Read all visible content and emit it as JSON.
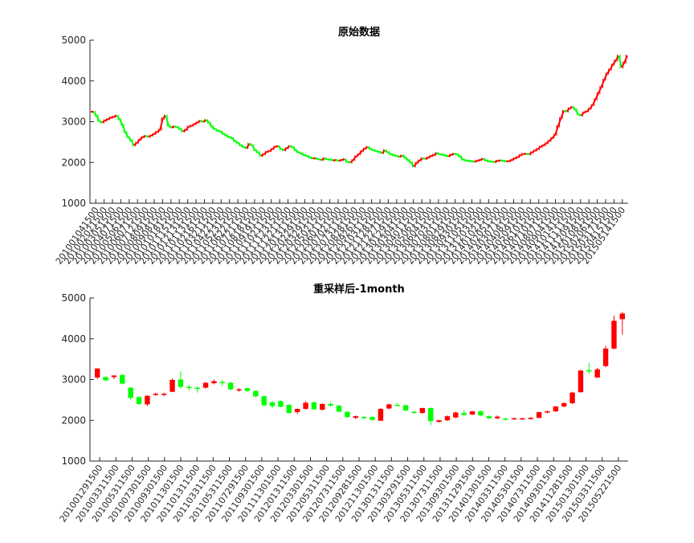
{
  "colors": {
    "up": "#ff0000",
    "down": "#00ff00",
    "axis": "#262626"
  },
  "chart_data": [
    {
      "type": "candlestick",
      "title": "原始数据",
      "xlabel": "",
      "ylabel": "",
      "ylim": [
        1000,
        5000
      ],
      "yticks": [
        1000,
        2000,
        3000,
        4000,
        5000
      ],
      "grid": false,
      "legend": "none",
      "x_tick_labels": [
        "201001041500",
        "201002021500",
        "201003051500",
        "201004071500",
        "201005061500",
        "201006071500",
        "201007121500",
        "201008091500",
        "201009081500",
        "201010181500",
        "201011151500",
        "201012131500",
        "201101131500",
        "201102161500",
        "201103211500",
        "201104221500",
        "201105231500",
        "201106221500",
        "201107211500",
        "201108181500",
        "201109191500",
        "201110211500",
        "201111231500",
        "201112211500",
        "201201311500",
        "201202291500",
        "201203291500",
        "201205021500",
        "201206011500",
        "201207021500",
        "201207311500",
        "201208281500",
        "201209261500",
        "201210311500",
        "201211281500",
        "201212271500",
        "201301291500",
        "201303041500",
        "201304011500",
        "201305061500",
        "201306041500",
        "201307031500",
        "201308011500",
        "201308291500",
        "201309301500",
        "201311051500",
        "201312031500",
        "201401021500",
        "201402051500",
        "201403071500",
        "201404081500",
        "201405091500",
        "201406101500",
        "201407101500",
        "201408071500",
        "201409041500",
        "201410141500",
        "201411111500",
        "201412091500",
        "201501081500",
        "201502061500",
        "201503171500",
        "201504151500",
        "201505141500"
      ],
      "series_close_sampled": [
        3243,
        3150,
        3010,
        2980,
        3030,
        3060,
        3100,
        3120,
        3150,
        3060,
        2920,
        2740,
        2620,
        2540,
        2420,
        2480,
        2560,
        2620,
        2650,
        2630,
        2660,
        2700,
        2750,
        2800,
        3080,
        3150,
        2900,
        2860,
        2880,
        2870,
        2820,
        2760,
        2800,
        2880,
        2900,
        2940,
        2980,
        3020,
        3000,
        3040,
        2980,
        2880,
        2820,
        2780,
        2760,
        2700,
        2660,
        2620,
        2600,
        2520,
        2480,
        2420,
        2380,
        2350,
        2460,
        2420,
        2300,
        2250,
        2160,
        2200,
        2260,
        2280,
        2330,
        2390,
        2400,
        2330,
        2300,
        2350,
        2400,
        2380,
        2300,
        2250,
        2220,
        2180,
        2160,
        2120,
        2100,
        2100,
        2080,
        2060,
        2100,
        2080,
        2070,
        2050,
        2060,
        2040,
        2060,
        2080,
        2010,
        2000,
        2060,
        2150,
        2200,
        2280,
        2340,
        2380,
        2330,
        2300,
        2280,
        2260,
        2230,
        2300,
        2250,
        2200,
        2180,
        2160,
        2140,
        2170,
        2120,
        2060,
        2000,
        1900,
        1990,
        2050,
        2100,
        2090,
        2120,
        2160,
        2180,
        2230,
        2200,
        2190,
        2170,
        2150,
        2190,
        2210,
        2200,
        2150,
        2070,
        2050,
        2040,
        2030,
        2020,
        2040,
        2060,
        2090,
        2050,
        2030,
        2020,
        2010,
        2040,
        2050,
        2040,
        2030,
        2030,
        2060,
        2100,
        2130,
        2180,
        2210,
        2210,
        2200,
        2250,
        2290,
        2330,
        2390,
        2420,
        2470,
        2530,
        2600,
        2680,
        2890,
        3090,
        3270,
        3250,
        3330,
        3360,
        3300,
        3180,
        3150,
        3230,
        3250,
        3320,
        3410,
        3550,
        3700,
        3850,
        4030,
        4180,
        4280,
        4400,
        4500,
        4620,
        4330,
        4450,
        4620
      ]
    },
    {
      "type": "candlestick",
      "title": "重采样后-1month",
      "xlabel": "",
      "ylabel": "",
      "ylim": [
        1000,
        5000
      ],
      "yticks": [
        1000,
        2000,
        3000,
        4000,
        5000
      ],
      "grid": false,
      "legend": "none",
      "x_tick_labels": [
        "201001291500",
        "201003311500",
        "201005311500",
        "201007301500",
        "201009301500",
        "201011301500",
        "201101311500",
        "201103311500",
        "201105311500",
        "201107291500",
        "201109301500",
        "201111301500",
        "201201311500",
        "201203301500",
        "201205311500",
        "201207311500",
        "201209281500",
        "201211301500",
        "201301311500",
        "201303291500",
        "201305311500",
        "201307311500",
        "201309301500",
        "201311291500",
        "201401301500",
        "201403311500",
        "201405301500",
        "201407311500",
        "201409301500",
        "201411281500",
        "201501301500",
        "201503311500",
        "201505221500"
      ],
      "candles": [
        {
          "o": 3050,
          "h": 3280,
          "l": 3010,
          "c": 3270
        },
        {
          "o": 3060,
          "h": 3080,
          "l": 2960,
          "c": 2980
        },
        {
          "o": 3060,
          "h": 3100,
          "l": 3010,
          "c": 3100
        },
        {
          "o": 3110,
          "h": 3130,
          "l": 2880,
          "c": 2900
        },
        {
          "o": 2800,
          "h": 2820,
          "l": 2500,
          "c": 2550
        },
        {
          "o": 2570,
          "h": 2590,
          "l": 2380,
          "c": 2400
        },
        {
          "o": 2390,
          "h": 2620,
          "l": 2350,
          "c": 2600
        },
        {
          "o": 2640,
          "h": 2680,
          "l": 2600,
          "c": 2650
        },
        {
          "o": 2640,
          "h": 2680,
          "l": 2590,
          "c": 2650
        },
        {
          "o": 2700,
          "h": 3030,
          "l": 2690,
          "c": 2990
        },
        {
          "o": 3000,
          "h": 3200,
          "l": 2780,
          "c": 2820
        },
        {
          "o": 2820,
          "h": 2870,
          "l": 2730,
          "c": 2790
        },
        {
          "o": 2800,
          "h": 2840,
          "l": 2680,
          "c": 2780
        },
        {
          "o": 2800,
          "h": 2940,
          "l": 2780,
          "c": 2920
        },
        {
          "o": 2910,
          "h": 3000,
          "l": 2880,
          "c": 2960
        },
        {
          "o": 2940,
          "h": 3000,
          "l": 2840,
          "c": 2910
        },
        {
          "o": 2920,
          "h": 2950,
          "l": 2740,
          "c": 2760
        },
        {
          "o": 2750,
          "h": 2790,
          "l": 2700,
          "c": 2760
        },
        {
          "o": 2790,
          "h": 2800,
          "l": 2700,
          "c": 2720
        },
        {
          "o": 2720,
          "h": 2740,
          "l": 2560,
          "c": 2590
        },
        {
          "o": 2590,
          "h": 2610,
          "l": 2330,
          "c": 2370
        },
        {
          "o": 2440,
          "h": 2470,
          "l": 2300,
          "c": 2350
        },
        {
          "o": 2470,
          "h": 2490,
          "l": 2320,
          "c": 2330
        },
        {
          "o": 2380,
          "h": 2400,
          "l": 2160,
          "c": 2180
        },
        {
          "o": 2200,
          "h": 2290,
          "l": 2150,
          "c": 2280
        },
        {
          "o": 2280,
          "h": 2470,
          "l": 2260,
          "c": 2430
        },
        {
          "o": 2440,
          "h": 2460,
          "l": 2260,
          "c": 2270
        },
        {
          "o": 2260,
          "h": 2420,
          "l": 2240,
          "c": 2400
        },
        {
          "o": 2400,
          "h": 2450,
          "l": 2330,
          "c": 2360
        },
        {
          "o": 2360,
          "h": 2380,
          "l": 2200,
          "c": 2210
        },
        {
          "o": 2210,
          "h": 2220,
          "l": 2060,
          "c": 2080
        },
        {
          "o": 2060,
          "h": 2120,
          "l": 2030,
          "c": 2100
        },
        {
          "o": 2080,
          "h": 2110,
          "l": 2030,
          "c": 2060
        },
        {
          "o": 2080,
          "h": 2090,
          "l": 1990,
          "c": 2010
        },
        {
          "o": 1990,
          "h": 2300,
          "l": 1980,
          "c": 2280
        },
        {
          "o": 2290,
          "h": 2410,
          "l": 2270,
          "c": 2390
        },
        {
          "o": 2380,
          "h": 2440,
          "l": 2350,
          "c": 2370
        },
        {
          "o": 2370,
          "h": 2380,
          "l": 2220,
          "c": 2240
        },
        {
          "o": 2210,
          "h": 2230,
          "l": 2160,
          "c": 2180
        },
        {
          "o": 2180,
          "h": 2310,
          "l": 2160,
          "c": 2300
        },
        {
          "o": 2300,
          "h": 2320,
          "l": 1880,
          "c": 1980
        },
        {
          "o": 1960,
          "h": 2010,
          "l": 1950,
          "c": 2000
        },
        {
          "o": 2000,
          "h": 2120,
          "l": 1980,
          "c": 2100
        },
        {
          "o": 2070,
          "h": 2210,
          "l": 2050,
          "c": 2190
        },
        {
          "o": 2180,
          "h": 2250,
          "l": 2110,
          "c": 2130
        },
        {
          "o": 2140,
          "h": 2230,
          "l": 2130,
          "c": 2220
        },
        {
          "o": 2220,
          "h": 2240,
          "l": 2100,
          "c": 2120
        },
        {
          "o": 2100,
          "h": 2120,
          "l": 2030,
          "c": 2050
        },
        {
          "o": 2050,
          "h": 2120,
          "l": 2020,
          "c": 2090
        },
        {
          "o": 2040,
          "h": 2070,
          "l": 2010,
          "c": 2030
        },
        {
          "o": 2040,
          "h": 2070,
          "l": 2020,
          "c": 2050
        },
        {
          "o": 2030,
          "h": 2060,
          "l": 2010,
          "c": 2050
        },
        {
          "o": 2050,
          "h": 2080,
          "l": 2020,
          "c": 2060
        },
        {
          "o": 2060,
          "h": 2210,
          "l": 2050,
          "c": 2200
        },
        {
          "o": 2200,
          "h": 2240,
          "l": 2170,
          "c": 2220
        },
        {
          "o": 2220,
          "h": 2350,
          "l": 2200,
          "c": 2340
        },
        {
          "o": 2340,
          "h": 2450,
          "l": 2320,
          "c": 2420
        },
        {
          "o": 2420,
          "h": 2700,
          "l": 2400,
          "c": 2680
        },
        {
          "o": 2690,
          "h": 3240,
          "l": 2680,
          "c": 3220
        },
        {
          "o": 3230,
          "h": 3400,
          "l": 3140,
          "c": 3200
        },
        {
          "o": 3050,
          "h": 3290,
          "l": 3040,
          "c": 3250
        },
        {
          "o": 3330,
          "h": 3830,
          "l": 3300,
          "c": 3760
        },
        {
          "o": 3760,
          "h": 4570,
          "l": 3740,
          "c": 4440
        },
        {
          "o": 4480,
          "h": 4660,
          "l": 4100,
          "c": 4620
        }
      ]
    }
  ]
}
